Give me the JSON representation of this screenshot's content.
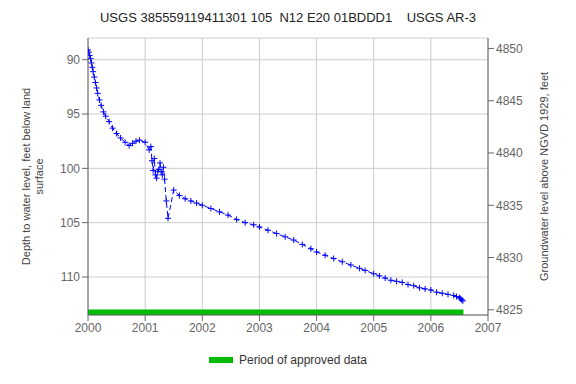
{
  "chart_data": {
    "type": "line",
    "title": "USGS 385559119411301 105  N12 E20 01BDDD1    USGS AR-3",
    "y_label": "Depth to water level, feet below land\nsurface",
    "y2_label": "Groundwater level above NGVD 1929, feet",
    "xlim": [
      2000,
      2007
    ],
    "xticks": [
      2000,
      2001,
      2002,
      2003,
      2004,
      2005,
      2006,
      2007
    ],
    "ylim": [
      113.5,
      88.0
    ],
    "yticks": [
      90,
      95,
      100,
      105,
      110
    ],
    "y2lim": [
      4824.5,
      4851.0
    ],
    "y2ticks": [
      4825,
      4830,
      4835,
      4840,
      4845,
      4850
    ],
    "grid": true,
    "x": [
      2000.0,
      2000.015,
      2000.03,
      2000.045,
      2000.06,
      2000.075,
      2000.09,
      2000.11,
      2000.13,
      2000.15,
      2000.17,
      2000.2,
      2000.23,
      2000.27,
      2000.31,
      2000.37,
      2000.43,
      2000.5,
      2000.57,
      2000.65,
      2000.72,
      2000.78,
      2000.84,
      2000.9,
      2001.0,
      2001.07,
      2001.1,
      2001.12,
      2001.14,
      2001.16,
      2001.18,
      2001.2,
      2001.22,
      2001.24,
      2001.26,
      2001.28,
      2001.3,
      2001.32,
      2001.34,
      2001.37,
      2001.4,
      2001.5,
      2001.6,
      2001.7,
      2001.8,
      2001.9,
      2002.0,
      2002.15,
      2002.3,
      2002.45,
      2002.6,
      2002.75,
      2002.9,
      2003.0,
      2003.15,
      2003.3,
      2003.45,
      2003.6,
      2003.75,
      2003.9,
      2004.0,
      2004.15,
      2004.3,
      2004.45,
      2004.6,
      2004.75,
      2004.85,
      2005.0,
      2005.1,
      2005.2,
      2005.3,
      2005.4,
      2005.5,
      2005.6,
      2005.7,
      2005.8,
      2005.9,
      2006.0,
      2006.1,
      2006.2,
      2006.3,
      2006.4,
      2006.45,
      2006.5,
      2006.52,
      2006.54,
      2006.56
    ],
    "series": [
      {
        "color": "#0000ff",
        "line_style": "dashed",
        "marker": "plus",
        "values": [
          89.1,
          89.3,
          89.6,
          89.9,
          90.3,
          90.7,
          91.1,
          91.6,
          92.1,
          92.6,
          93.1,
          93.7,
          94.2,
          94.8,
          95.2,
          95.7,
          96.3,
          96.8,
          97.2,
          97.6,
          97.9,
          97.7,
          97.5,
          97.4,
          97.6,
          98.3,
          98.0,
          99.3,
          100.2,
          99.1,
          100.6,
          100.9,
          100.3,
          100.1,
          99.5,
          100.3,
          100.6,
          99.9,
          101.0,
          103.0,
          104.6,
          102.0,
          102.5,
          102.8,
          103.0,
          103.2,
          103.4,
          103.7,
          104.0,
          104.3,
          104.7,
          105.0,
          105.2,
          105.4,
          105.7,
          106.0,
          106.3,
          106.6,
          107.0,
          107.4,
          107.7,
          108.0,
          108.3,
          108.6,
          108.9,
          109.2,
          109.4,
          109.7,
          109.9,
          110.1,
          110.3,
          110.4,
          110.5,
          110.7,
          110.8,
          111.0,
          111.1,
          111.2,
          111.4,
          111.5,
          111.6,
          111.7,
          111.8,
          111.9,
          112.0,
          112.1,
          112.2
        ]
      }
    ],
    "approved_period": {
      "name": "Period of approved data",
      "color": "#00bb00",
      "x": [
        2000.0,
        2006.57
      ],
      "y": [
        113.5,
        113.0
      ]
    }
  }
}
